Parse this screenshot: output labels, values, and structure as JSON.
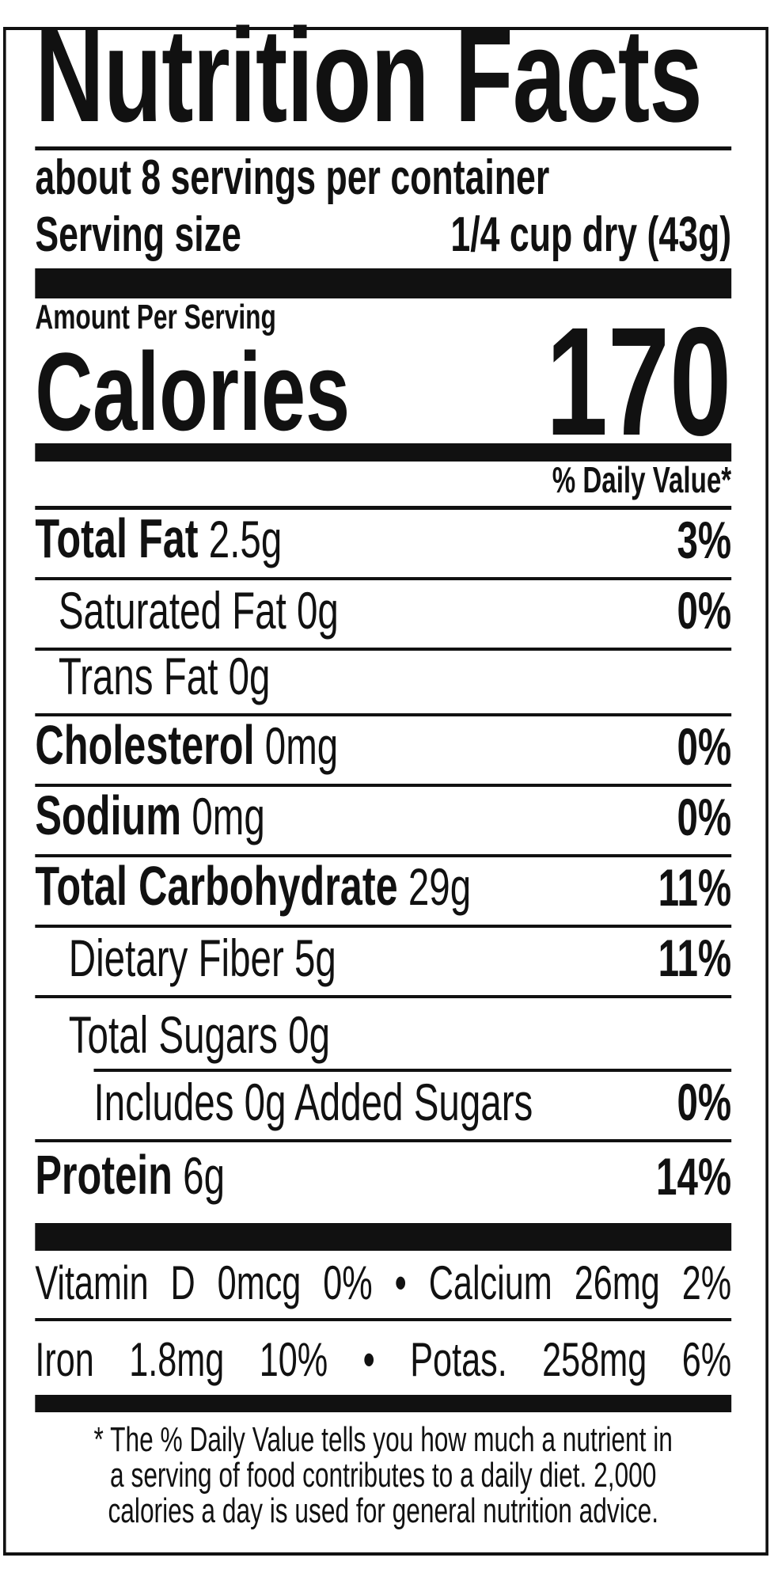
{
  "title": "Nutrition Facts",
  "servings_per_container": "about 8 servings per container",
  "serving_size": {
    "label": "Serving size",
    "value": "1/4 cup dry (43g)"
  },
  "amount_per_serving": "Amount Per Serving",
  "calories": {
    "label": "Calories",
    "value": "170"
  },
  "daily_value_header": "% Daily Value*",
  "nutrients": [
    {
      "name": "Total Fat",
      "amount": "2.5g",
      "dv": "3%"
    },
    {
      "name": "Saturated Fat",
      "amount": "0g",
      "dv": "0%"
    },
    {
      "name": "Trans Fat",
      "amount": "0g",
      "dv": ""
    },
    {
      "name": "Cholesterol",
      "amount": "0mg",
      "dv": "0%"
    },
    {
      "name": "Sodium",
      "amount": "0mg",
      "dv": "0%"
    },
    {
      "name": "Total Carbohydrate",
      "amount": "29g",
      "dv": "11%"
    },
    {
      "name": "Dietary Fiber",
      "amount": "5g",
      "dv": "11%"
    },
    {
      "name": "Total Sugars",
      "amount": "0g",
      "dv": ""
    },
    {
      "name": "Includes 0g Added Sugars",
      "amount": "",
      "dv": "0%"
    },
    {
      "name": "Protein",
      "amount": "6g",
      "dv": "14%"
    }
  ],
  "vitamins_row1": [
    "Vitamin",
    "D",
    "0mcg",
    "0%",
    "•",
    "Calcium",
    "26mg",
    "2%"
  ],
  "vitamins_row2": [
    "Iron",
    "1.8mg",
    "10%",
    "•",
    "Potas.",
    "258mg",
    "6%"
  ],
  "footnote": [
    "* The % Daily Value tells you how much a nutrient in",
    "a serving of food contributes to a daily diet. 2,000",
    "calories a day is used for general nutrition advice."
  ]
}
